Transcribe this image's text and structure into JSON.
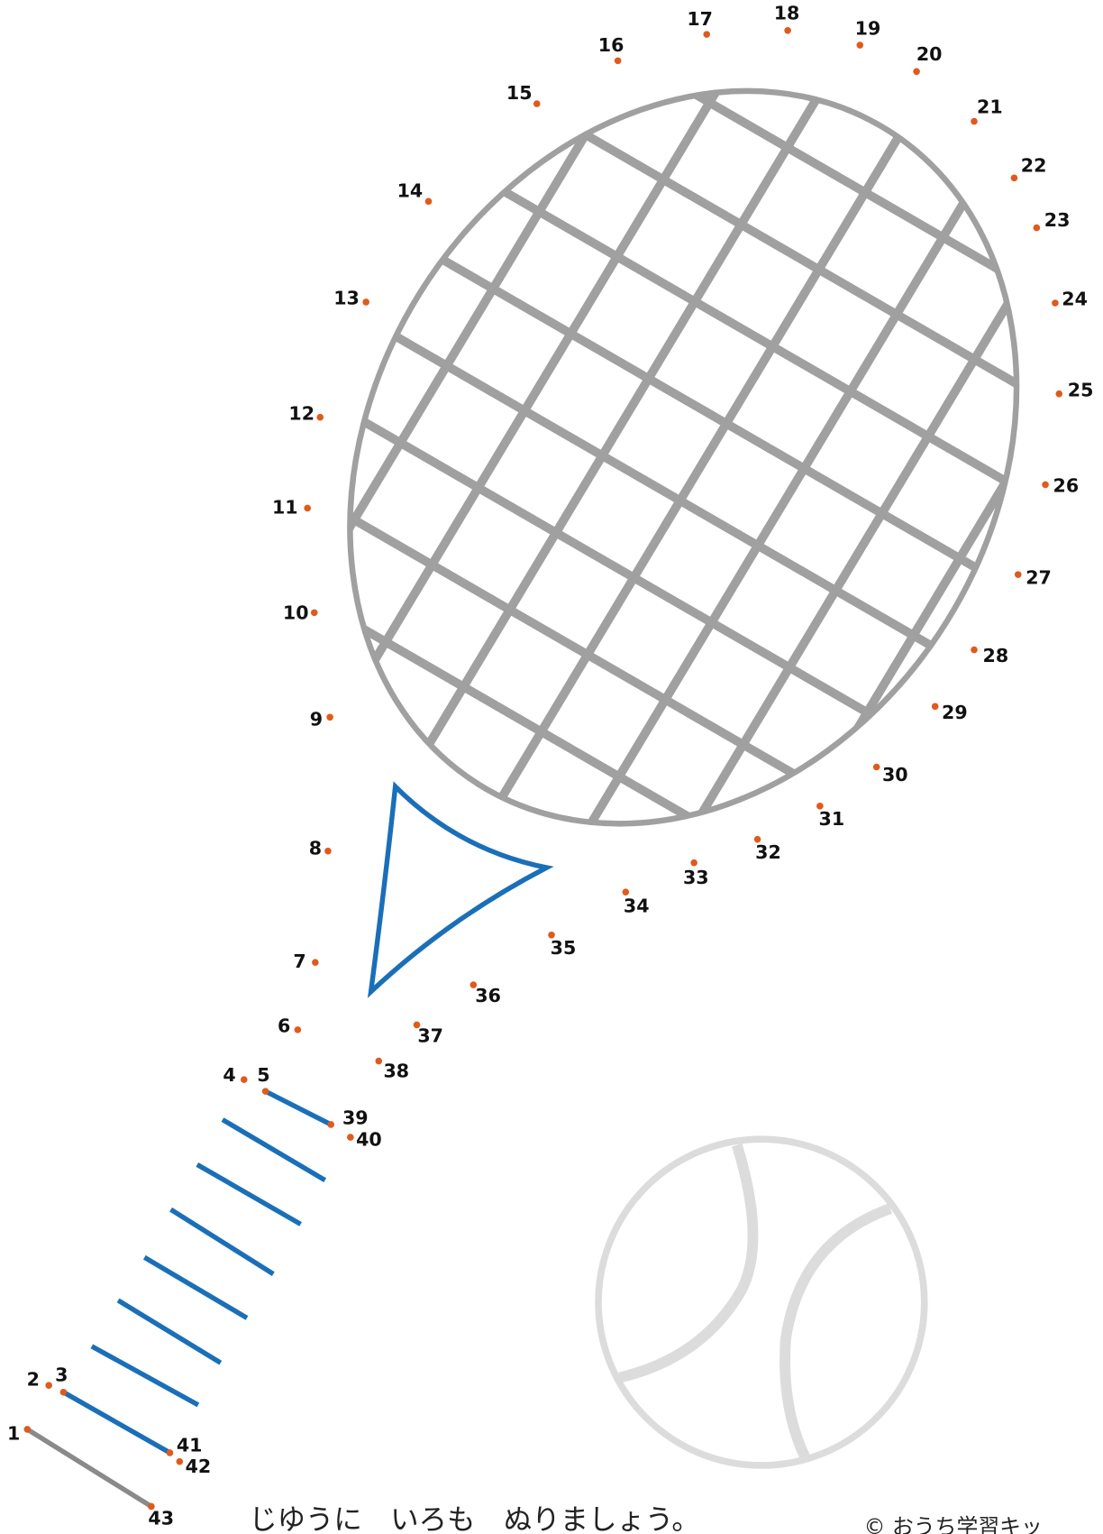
{
  "dots": [
    "1",
    "2",
    "3",
    "4",
    "5",
    "6",
    "7",
    "8",
    "9",
    "10",
    "11",
    "12",
    "13",
    "14",
    "15",
    "16",
    "17",
    "18",
    "19",
    "20",
    "21",
    "22",
    "23",
    "24",
    "25",
    "26",
    "27",
    "28",
    "29",
    "30",
    "31",
    "32",
    "33",
    "34",
    "35",
    "36",
    "37",
    "38",
    "39",
    "40",
    "41",
    "42",
    "43"
  ],
  "instruction": "じゆうに　いろも　ぬりましょう。",
  "copyright": "© おうち学習キッ"
}
